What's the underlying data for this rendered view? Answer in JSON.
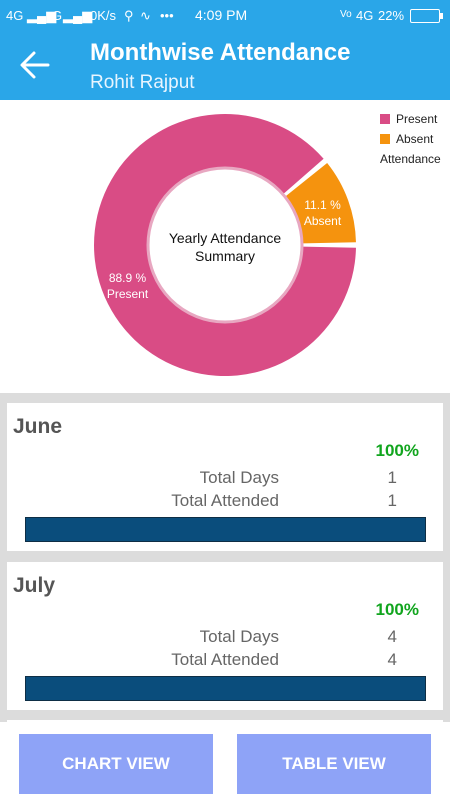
{
  "status": {
    "left": "4G",
    "g": "G",
    "speed": "0K/s",
    "dots": "•••",
    "time": "4:09 PM",
    "network": "4G",
    "battery": "22%"
  },
  "header": {
    "title": "Monthwise Attendance",
    "subtitle": "Rohit Rajput"
  },
  "chart_data": {
    "type": "pie",
    "center_text": [
      "Yearly Attendance",
      "Summary"
    ],
    "legend_title": "Attendance",
    "legend_position": "top-right",
    "slices": [
      {
        "name": "Present",
        "value": 88.9,
        "label": [
          "88.9 %",
          "Present"
        ],
        "color": "#d94c85"
      },
      {
        "name": "Absent",
        "value": 11.1,
        "label": [
          "11.1 %",
          "Absent"
        ],
        "color": "#f5930e"
      }
    ]
  },
  "months": [
    {
      "name": "June",
      "percent": "100%",
      "rows": [
        {
          "label": "Total Days",
          "value": "1"
        },
        {
          "label": "Total Attended",
          "value": "1"
        }
      ],
      "progress": 1.0
    },
    {
      "name": "July",
      "percent": "100%",
      "rows": [
        {
          "label": "Total Days",
          "value": "4"
        },
        {
          "label": "Total Attended",
          "value": "4"
        }
      ],
      "progress": 1.0
    }
  ],
  "buttons": {
    "chart": "CHART VIEW",
    "table": "TABLE VIEW"
  },
  "colors": {
    "accent": "#2aa6e8",
    "present": "#d94c85",
    "absent": "#f5930e",
    "percent_green": "#11a51e",
    "progress": "#0a4d7c",
    "button": "#8ea3f7"
  }
}
